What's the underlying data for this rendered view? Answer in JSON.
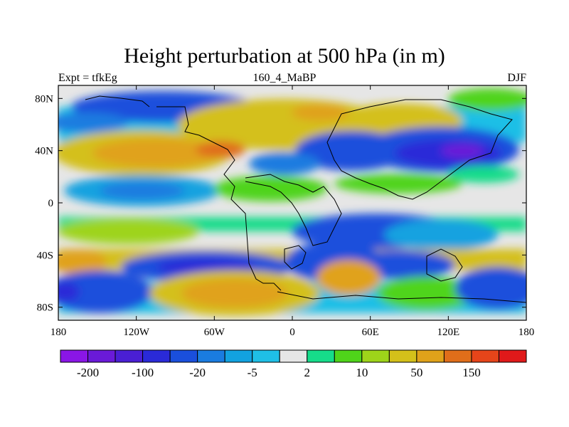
{
  "title": "Height perturbation at 500 hPa (in m)",
  "subtitle_left": "Expt = tfkEg",
  "subtitle_center": "160_4_MaBP",
  "subtitle_right": "DJF",
  "map": {
    "projection": "cylindrical-equidistant",
    "lon_range": [
      -180,
      180
    ],
    "lat_range": [
      -90,
      90
    ],
    "x_ticks": [
      {
        "lon": -180,
        "label": "180"
      },
      {
        "lon": -120,
        "label": "120W"
      },
      {
        "lon": -60,
        "label": "60W"
      },
      {
        "lon": 0,
        "label": "0"
      },
      {
        "lon": 60,
        "label": "60E"
      },
      {
        "lon": 120,
        "label": "120E"
      },
      {
        "lon": 180,
        "label": "180"
      }
    ],
    "y_ticks": [
      {
        "lat": 80,
        "label": "80N"
      },
      {
        "lat": 40,
        "label": "40N"
      },
      {
        "lat": 0,
        "label": "0"
      },
      {
        "lat": -40,
        "label": "40S"
      },
      {
        "lat": -80,
        "label": "80S"
      }
    ],
    "continent_outline_color": "#000000"
  },
  "colorbar": {
    "colors": [
      "#8a16e6",
      "#6a1ad8",
      "#4a1fd4",
      "#2a2ad8",
      "#1a4fdc",
      "#1a7ce0",
      "#12a2e0",
      "#1fbfe6",
      "#e6e6e6",
      "#16dc8a",
      "#4fd41a",
      "#9ed41a",
      "#d4c01a",
      "#e0a21a",
      "#e06e1a",
      "#e6451a",
      "#e0191a"
    ],
    "labels": [
      {
        "after_box": 1,
        "text": "-200"
      },
      {
        "after_box": 3,
        "text": "-100"
      },
      {
        "after_box": 5,
        "text": "-20"
      },
      {
        "after_box": 7,
        "text": "-5"
      },
      {
        "after_box": 9,
        "text": "2"
      },
      {
        "after_box": 11,
        "text": "10"
      },
      {
        "after_box": 13,
        "text": "50"
      },
      {
        "after_box": 15,
        "text": "150"
      }
    ]
  }
}
